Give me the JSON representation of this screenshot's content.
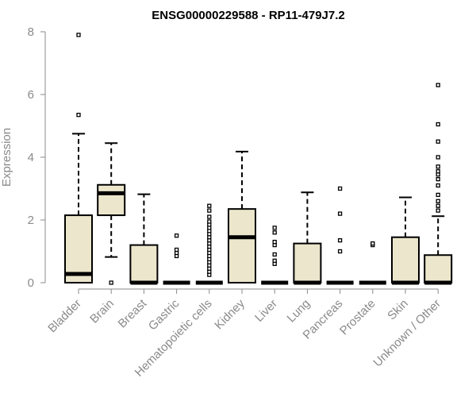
{
  "chart_data": {
    "type": "boxplot",
    "title": "ENSG00000229588 - RP11-479J7.2",
    "xlabel": "",
    "ylabel": "Expression",
    "ylim": [
      0,
      8
    ],
    "yticks": [
      0,
      2,
      4,
      6,
      8
    ],
    "grid": false,
    "colors": {
      "box_fill": "#ece6cc",
      "box_stroke": "#000000",
      "median": "#000000",
      "axis": "#8a8a8a"
    },
    "categories": [
      "Bladder",
      "Brain",
      "Breast",
      "Gastric",
      "Hematopoietic cells",
      "Kidney",
      "Liver",
      "Lung",
      "Pancreas",
      "Prostate",
      "Skin",
      "Unknown / Other"
    ],
    "boxes": [
      {
        "q1": 0.0,
        "median": 0.28,
        "q3": 2.15,
        "whisker_low": 0.0,
        "whisker_high": 4.75,
        "outliers": [
          5.35,
          7.9
        ]
      },
      {
        "q1": 2.15,
        "median": 2.85,
        "q3": 3.12,
        "whisker_low": 0.82,
        "whisker_high": 4.45,
        "outliers": [
          0.0
        ]
      },
      {
        "q1": 0.0,
        "median": 0.0,
        "q3": 1.2,
        "whisker_low": 0.0,
        "whisker_high": 2.82,
        "outliers": []
      },
      {
        "q1": 0.0,
        "median": 0.0,
        "q3": 0.0,
        "whisker_low": 0.0,
        "whisker_high": 0.0,
        "outliers": [
          0.85,
          0.95,
          1.05,
          1.5
        ]
      },
      {
        "q1": 0.0,
        "median": 0.0,
        "q3": 0.0,
        "whisker_low": 0.0,
        "whisker_high": 0.0,
        "outliers": [
          0.25,
          0.35,
          0.45,
          0.55,
          0.65,
          0.75,
          0.85,
          0.95,
          1.05,
          1.15,
          1.25,
          1.35,
          1.45,
          1.55,
          1.65,
          1.75,
          1.85,
          1.95,
          2.1,
          2.3,
          2.45
        ]
      },
      {
        "q1": 0.0,
        "median": 1.45,
        "q3": 2.35,
        "whisker_low": 0.0,
        "whisker_high": 4.18,
        "outliers": []
      },
      {
        "q1": 0.0,
        "median": 0.0,
        "q3": 0.0,
        "whisker_low": 0.0,
        "whisker_high": 0.0,
        "outliers": [
          0.6,
          0.7,
          0.9,
          1.2,
          1.3,
          1.6,
          1.75
        ]
      },
      {
        "q1": 0.0,
        "median": 0.0,
        "q3": 1.25,
        "whisker_low": 0.0,
        "whisker_high": 2.88,
        "outliers": []
      },
      {
        "q1": 0.0,
        "median": 0.0,
        "q3": 0.0,
        "whisker_low": 0.0,
        "whisker_high": 0.0,
        "outliers": [
          1.0,
          1.35,
          2.2,
          3.0
        ]
      },
      {
        "q1": 0.0,
        "median": 0.0,
        "q3": 0.0,
        "whisker_low": 0.0,
        "whisker_high": 0.0,
        "outliers": [
          1.2,
          1.25
        ]
      },
      {
        "q1": 0.0,
        "median": 0.0,
        "q3": 1.45,
        "whisker_low": 0.0,
        "whisker_high": 2.72,
        "outliers": []
      },
      {
        "q1": 0.0,
        "median": 0.0,
        "q3": 0.88,
        "whisker_low": 0.0,
        "whisker_high": 2.12,
        "outliers": [
          2.3,
          2.45,
          2.6,
          2.8,
          3.1,
          3.3,
          3.45,
          3.55,
          3.7,
          4.0,
          4.5,
          5.05,
          6.3
        ]
      }
    ]
  }
}
